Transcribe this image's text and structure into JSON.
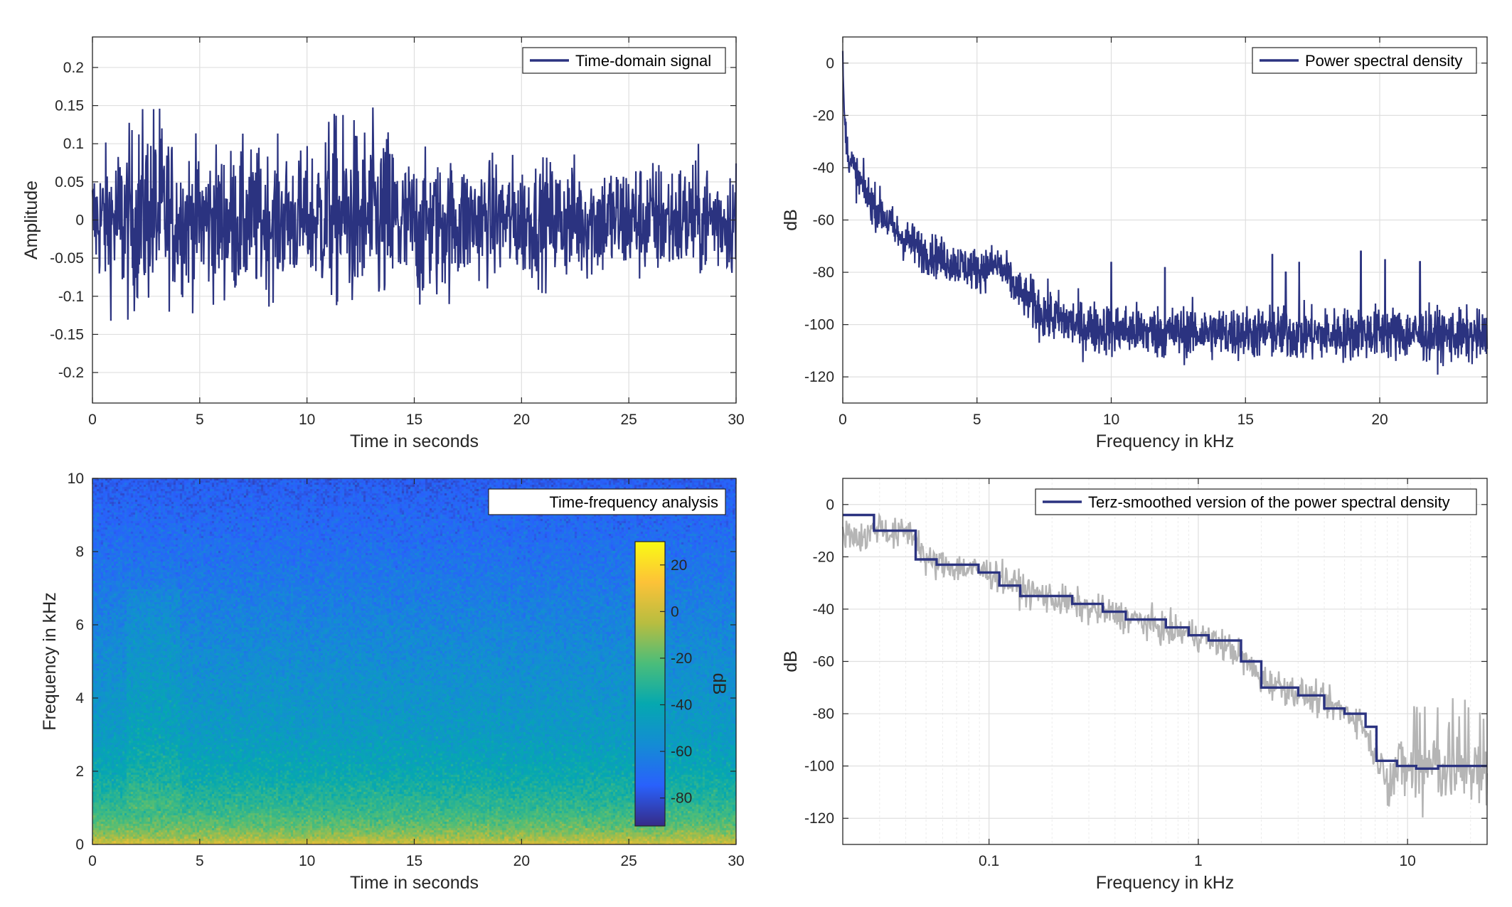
{
  "chart_data": [
    {
      "id": "time",
      "type": "line",
      "xlabel": "Time in seconds",
      "ylabel": "Amplitude",
      "xlim": [
        0,
        30
      ],
      "ylim": [
        -0.24,
        0.24
      ],
      "xticks": [
        0,
        5,
        10,
        15,
        20,
        25,
        30
      ],
      "yticks": [
        -0.2,
        -0.15,
        -0.1,
        -0.05,
        0,
        0.05,
        0.1,
        0.15,
        0.2
      ],
      "grid": true,
      "legend_position": "top-right",
      "series": [
        {
          "name": "Time-domain signal",
          "color": "#2b3380",
          "envelope_x": [
            0,
            1.6,
            2.9,
            4.0,
            7.0,
            10.0,
            11.0,
            13.9,
            14.5,
            18.0,
            22.0,
            26.0,
            30.0
          ],
          "envelope_upper": [
            0.1,
            0.14,
            0.2,
            0.12,
            0.12,
            0.11,
            0.17,
            0.15,
            0.1,
            0.1,
            0.1,
            0.1,
            0.1
          ],
          "envelope_lower": [
            -0.1,
            -0.16,
            -0.13,
            -0.12,
            -0.13,
            -0.1,
            -0.14,
            -0.165,
            -0.16,
            -0.1,
            -0.1,
            -0.1,
            -0.09
          ]
        }
      ]
    },
    {
      "id": "psd",
      "type": "line",
      "xlabel": "Frequency in kHz",
      "ylabel": "dB",
      "xlim": [
        0,
        24
      ],
      "ylim": [
        -130,
        10
      ],
      "xticks": [
        0,
        5,
        10,
        15,
        20
      ],
      "yticks": [
        -120,
        -100,
        -80,
        -60,
        -40,
        -20,
        0
      ],
      "grid": true,
      "legend_position": "top-right",
      "series": [
        {
          "name": "Power spectral density",
          "color": "#2b3380",
          "x": [
            0,
            0.05,
            0.2,
            0.5,
            1,
            1.5,
            2,
            3,
            4,
            5,
            5.8,
            6.5,
            7.5,
            9,
            12,
            15,
            18,
            20,
            22,
            24
          ],
          "y": [
            3,
            -20,
            -35,
            -43,
            -52,
            -58,
            -65,
            -72,
            -76,
            -79,
            -77,
            -87,
            -96,
            -101,
            -103,
            -103,
            -104,
            -103,
            -104,
            -105
          ],
          "peaks_x": [
            10,
            12,
            16,
            16.5,
            17,
            19.3,
            20.2,
            21.5
          ],
          "peaks_y": [
            -76,
            -78,
            -73,
            -80,
            -76,
            -72,
            -75,
            -76
          ]
        }
      ]
    },
    {
      "id": "spectrogram",
      "type": "heatmap",
      "xlabel": "Time in seconds",
      "ylabel": "Frequency in kHz",
      "xlim": [
        0,
        30
      ],
      "ylim": [
        0,
        10
      ],
      "xticks": [
        0,
        5,
        10,
        15,
        20,
        25,
        30
      ],
      "yticks": [
        0,
        2,
        4,
        6,
        8,
        10
      ],
      "legend_position": "top-right",
      "legend_label": "Time-frequency analysis",
      "colorbar": {
        "label": "dB",
        "range": [
          -92,
          30
        ],
        "ticks": [
          20,
          0,
          -20,
          -40,
          -60,
          -80
        ]
      },
      "level_profile_freq_khz": [
        0,
        0.2,
        0.5,
        1,
        1.5,
        2,
        3,
        4,
        5,
        6,
        7,
        8,
        9,
        10
      ],
      "level_profile_db": [
        5,
        -8,
        -18,
        -28,
        -34,
        -40,
        -48,
        -52,
        -56,
        -60,
        -64,
        -68,
        -72,
        -76
      ]
    },
    {
      "id": "terz",
      "type": "line",
      "xlabel": "Frequency in kHz",
      "ylabel": "dB",
      "xscale": "log",
      "xlim": [
        0.02,
        24
      ],
      "ylim": [
        -130,
        10
      ],
      "xticks": [
        0.1,
        1,
        10
      ],
      "xticklabels": [
        "0.1",
        "1",
        "10"
      ],
      "yticks": [
        -120,
        -100,
        -80,
        -60,
        -40,
        -20,
        0
      ],
      "grid": true,
      "legend_position": "top-right",
      "series": [
        {
          "name": "Terz-smoothed version of the power spectral density",
          "color": "#2b3380",
          "x": [
            0.02,
            0.0282,
            0.0446,
            0.0562,
            0.0891,
            0.112,
            0.141,
            0.2,
            0.25,
            0.35,
            0.45,
            0.7,
            0.9,
            1.12,
            1.6,
            2,
            3,
            4,
            5,
            6.3,
            7.1,
            8.9,
            11,
            14,
            24
          ],
          "y": [
            -4,
            -10,
            -21,
            -23,
            -26,
            -31,
            -35,
            -35,
            -38,
            -41,
            -44,
            -47,
            -50,
            -52,
            -60,
            -70,
            -73,
            -78,
            -80,
            -85,
            -98,
            -100,
            -101,
            -100,
            -100
          ]
        },
        {
          "name": "",
          "color": "#b5b5b5",
          "x": [
            0.02,
            0.025,
            0.03,
            0.035,
            0.04,
            0.045,
            0.05,
            0.07,
            0.1,
            0.15,
            0.2,
            0.3,
            0.5,
            0.7,
            1,
            1.5,
            2,
            3,
            4,
            5,
            6,
            7,
            8,
            10,
            14,
            18,
            24
          ],
          "y": [
            -10,
            -13,
            -8,
            -12,
            -10,
            -12,
            -22,
            -24,
            -26,
            -33,
            -36,
            -40,
            -44,
            -48,
            -50,
            -56,
            -67,
            -72,
            -76,
            -79,
            -83,
            -96,
            -103,
            -101,
            -100,
            -101,
            -103
          ]
        }
      ]
    }
  ]
}
